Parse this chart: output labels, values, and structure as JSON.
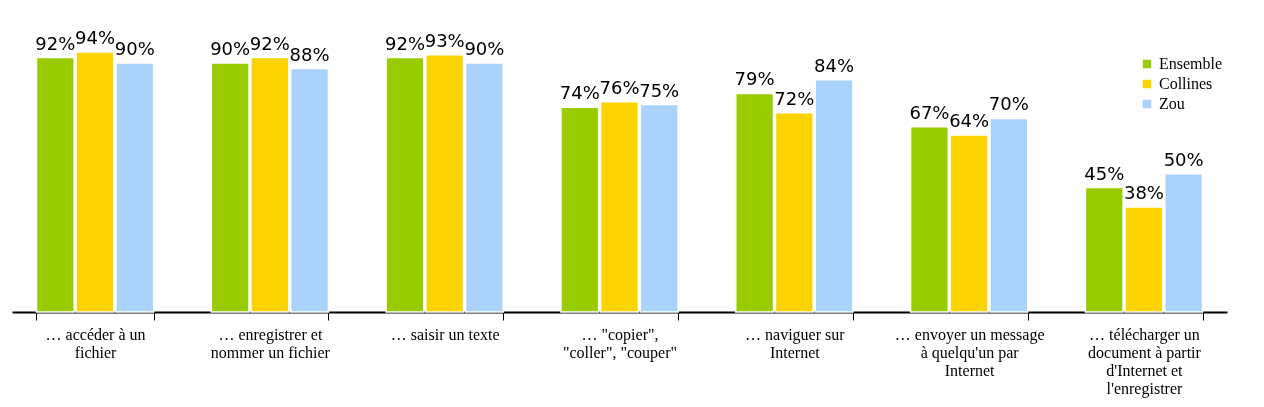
{
  "chart_data": {
    "type": "bar",
    "categories": [
      "… accéder à un fichier",
      "… enregistrer et nommer un fichier",
      "… saisir un texte",
      "… \"copier\", \"coller\", \"couper\"",
      "… naviguer sur Internet",
      "… envoyer un message à quelqu'un par Internet",
      "… télécharger un document à partir d'Internet et l'enregistrer"
    ],
    "series": [
      {
        "name": "Ensemble",
        "color": "#99cc00",
        "values": [
          92,
          90,
          92,
          74,
          79,
          67,
          45
        ],
        "value_labels": [
          "92%",
          "90%",
          "92%",
          "74%",
          "79%",
          "67%",
          "45%"
        ]
      },
      {
        "name": "Collines",
        "color": "#fbd300",
        "values": [
          94,
          92,
          93,
          76,
          72,
          64,
          38
        ],
        "value_labels": [
          "94%",
          "92%",
          "93%",
          "76%",
          "72%",
          "64%",
          "38%"
        ]
      },
      {
        "name": "Zou",
        "color": "#a9d3fb",
        "values": [
          90,
          88,
          90,
          75,
          84,
          70,
          50
        ],
        "value_labels": [
          "90%",
          "88%",
          "90%",
          "75%",
          "84%",
          "70%",
          "50%"
        ]
      }
    ],
    "tick_labels": "x",
    "grid": false,
    "legend": "top right"
  }
}
